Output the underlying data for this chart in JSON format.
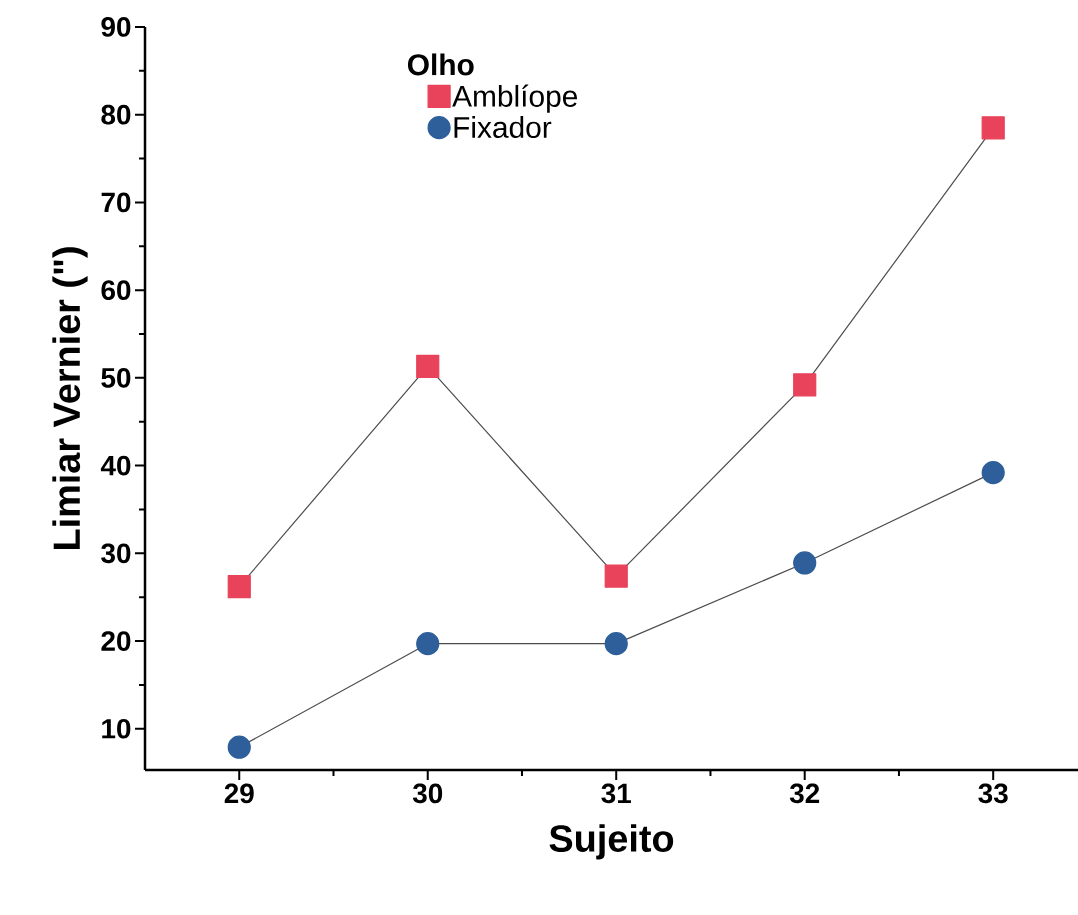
{
  "chart_data": {
    "type": "line",
    "xlabel": "Sujeito",
    "ylabel": "Limiar Vernier (\")",
    "legend_title": "Olho",
    "x": [
      29,
      30,
      31,
      32,
      33
    ],
    "series": [
      {
        "name": "Amblíope",
        "color": "#e8435a",
        "marker": "square",
        "values": [
          26.2,
          51.3,
          27.4,
          49.2,
          78.5
        ]
      },
      {
        "name": "Fixador",
        "color": "#2e5f9a",
        "marker": "circle",
        "values": [
          7.9,
          19.7,
          19.7,
          28.9,
          39.2
        ]
      }
    ],
    "xlim": [
      28.5,
      33.45
    ],
    "ylim": [
      5.3,
      90
    ],
    "xticks": [
      29,
      30,
      31,
      32,
      33
    ],
    "yticks": [
      10,
      20,
      30,
      40,
      50,
      60,
      70,
      80,
      90
    ],
    "grid": false,
    "legend": "top",
    "line_style": "solid"
  }
}
